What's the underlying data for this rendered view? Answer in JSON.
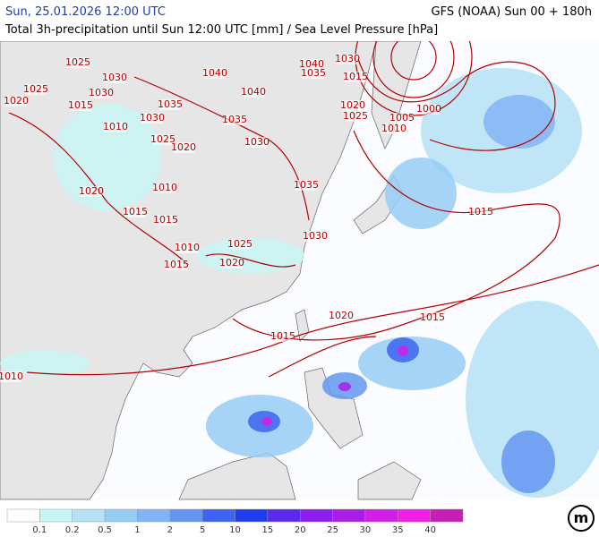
{
  "header": {
    "date": "Sun, 25.01.2026 12:00 UTC",
    "model": "GFS (NOAA) Sun 00 + 180h",
    "subtitle": "Total 3h-precipitation until Sun 12:00 UTC [mm] / Sea Level Pressure [hPa]"
  },
  "isobar_labels": [
    "1020",
    "1025",
    "1025",
    "1030",
    "1030",
    "1015",
    "1030",
    "1035",
    "1035",
    "1010",
    "1025",
    "1020",
    "1030",
    "1040",
    "1040",
    "1040",
    "1035",
    "1030",
    "1015",
    "1020",
    "1010",
    "1015",
    "1015",
    "1010",
    "1025",
    "1020",
    "1015",
    "1035",
    "1030",
    "1020",
    "1025",
    "1005",
    "1010",
    "1000",
    "1015",
    "1020",
    "1015",
    "1015",
    "1010"
  ],
  "legend": {
    "values": [
      0.1,
      0.2,
      0.5,
      1,
      2,
      5,
      10,
      15,
      20,
      25,
      30,
      35,
      40
    ],
    "colors": [
      "#ffffff",
      "#c8f5f5",
      "#b4e1f5",
      "#96cdf5",
      "#82b4f5",
      "#6496f0",
      "#3c64f0",
      "#1e3cf0",
      "#5a28f0",
      "#8c1ef0",
      "#aa1ee6",
      "#d21ee6",
      "#f01ee6",
      "#c81eb4"
    ]
  },
  "logo": "m"
}
